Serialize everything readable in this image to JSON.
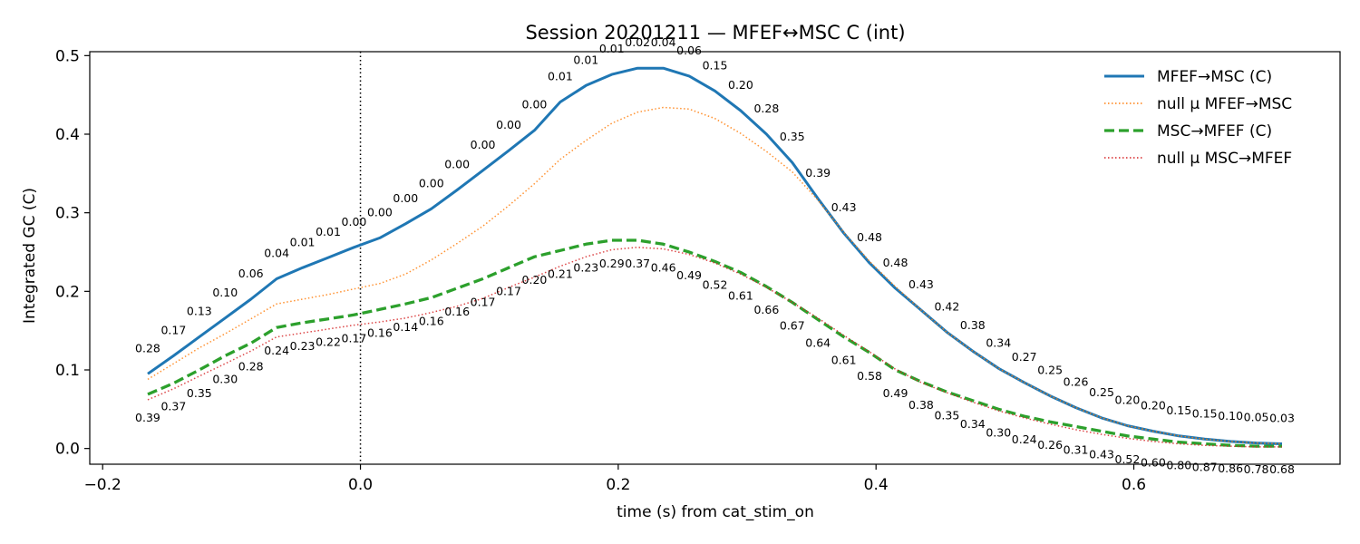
{
  "chart_data": {
    "type": "line",
    "title": "Session 20201211 — MFEF↔MSC C (int)",
    "xlabel": "time (s) from cat_stim_on",
    "ylabel": "Integrated GC (C)",
    "xlim": [
      -0.21,
      0.76
    ],
    "ylim": [
      -0.02,
      0.505
    ],
    "xticks": [
      -0.2,
      0.0,
      0.2,
      0.4,
      0.6
    ],
    "xtick_labels": [
      "−0.2",
      "0.0",
      "0.2",
      "0.4",
      "0.6"
    ],
    "yticks": [
      0.0,
      0.1,
      0.2,
      0.3,
      0.4,
      0.5
    ],
    "ytick_labels": [
      "0.0",
      "0.1",
      "0.2",
      "0.3",
      "0.4",
      "0.5"
    ],
    "vline_x": 0.0,
    "grid": false,
    "legend_position": "top-right",
    "x": [
      -0.165,
      -0.145,
      -0.125,
      -0.105,
      -0.085,
      -0.065,
      -0.045,
      -0.025,
      -0.005,
      0.015,
      0.035,
      0.055,
      0.075,
      0.095,
      0.115,
      0.135,
      0.155,
      0.175,
      0.195,
      0.215,
      0.235,
      0.255,
      0.275,
      0.295,
      0.315,
      0.335,
      0.355,
      0.375,
      0.395,
      0.415,
      0.435,
      0.455,
      0.475,
      0.495,
      0.515,
      0.535,
      0.555,
      0.575,
      0.595,
      0.615,
      0.635,
      0.655,
      0.675,
      0.695,
      0.715
    ],
    "series": [
      {
        "name": "MFEF→MSC (C)",
        "color": "#1f77b4",
        "style": "solid",
        "values": [
          0.095,
          0.118,
          0.142,
          0.166,
          0.19,
          0.216,
          0.23,
          0.243,
          0.256,
          0.268,
          0.286,
          0.305,
          0.329,
          0.354,
          0.379,
          0.405,
          0.441,
          0.462,
          0.476,
          0.484,
          0.484,
          0.474,
          0.455,
          0.43,
          0.4,
          0.364,
          0.318,
          0.274,
          0.236,
          0.204,
          0.176,
          0.148,
          0.124,
          0.102,
          0.084,
          0.067,
          0.052,
          0.039,
          0.029,
          0.022,
          0.016,
          0.012,
          0.009,
          0.007,
          0.006
        ],
        "pvalues": [
          "0.28",
          "0.17",
          "0.13",
          "0.10",
          "0.06",
          "0.04",
          "0.01",
          "0.01",
          "0.00",
          "0.00",
          "0.00",
          "0.00",
          "0.00",
          "0.00",
          "0.00",
          "0.00",
          "0.01",
          "0.01",
          "0.01",
          "0.02",
          "0.04",
          "0.06",
          "0.15",
          "0.20",
          "0.28",
          "0.35",
          "0.39",
          "0.43",
          "0.48",
          "0.48",
          "0.43",
          "0.42",
          "0.38",
          "0.34",
          "0.27",
          "0.25",
          "0.26",
          "0.25",
          "0.20",
          "0.20",
          "0.15",
          "0.15",
          "0.10",
          "0.05",
          "0.03"
        ]
      },
      {
        "name": "null μ MFEF→MSC",
        "color": "#ff7f0e",
        "style": "dotted",
        "values": [
          0.088,
          0.108,
          0.128,
          0.146,
          0.165,
          0.184,
          0.19,
          0.196,
          0.203,
          0.21,
          0.222,
          0.24,
          0.261,
          0.283,
          0.309,
          0.337,
          0.368,
          0.392,
          0.414,
          0.428,
          0.434,
          0.432,
          0.42,
          0.401,
          0.378,
          0.352,
          0.316,
          0.275,
          0.238,
          0.206,
          0.176,
          0.148,
          0.124,
          0.102,
          0.084,
          0.067,
          0.052,
          0.039,
          0.029,
          0.022,
          0.016,
          0.012,
          0.009,
          0.007,
          0.006
        ]
      },
      {
        "name": "MSC→MFEF (C)",
        "color": "#2ca02c",
        "style": "dashed",
        "values": [
          0.069,
          0.083,
          0.1,
          0.118,
          0.134,
          0.154,
          0.16,
          0.165,
          0.17,
          0.177,
          0.184,
          0.192,
          0.204,
          0.216,
          0.23,
          0.244,
          0.252,
          0.26,
          0.265,
          0.265,
          0.26,
          0.25,
          0.238,
          0.224,
          0.206,
          0.186,
          0.164,
          0.142,
          0.122,
          0.1,
          0.085,
          0.072,
          0.061,
          0.05,
          0.041,
          0.034,
          0.028,
          0.022,
          0.016,
          0.012,
          0.008,
          0.006,
          0.004,
          0.003,
          0.003
        ],
        "pvalues": [
          "0.39",
          "0.37",
          "0.35",
          "0.30",
          "0.28",
          "0.24",
          "0.23",
          "0.22",
          "0.17",
          "0.16",
          "0.14",
          "0.16",
          "0.16",
          "0.17",
          "0.17",
          "0.20",
          "0.21",
          "0.23",
          "0.29",
          "0.37",
          "0.46",
          "0.49",
          "0.52",
          "0.61",
          "0.66",
          "0.67",
          "0.64",
          "0.61",
          "0.58",
          "0.49",
          "0.38",
          "0.35",
          "0.34",
          "0.30",
          "0.24",
          "0.26",
          "0.31",
          "0.43",
          "0.52",
          "0.60",
          "0.80",
          "0.87",
          "0.86",
          "0.78",
          "0.68"
        ]
      },
      {
        "name": "null μ MSC→MFEF",
        "color": "#d62728",
        "style": "dotted",
        "values": [
          0.062,
          0.076,
          0.092,
          0.108,
          0.124,
          0.142,
          0.147,
          0.152,
          0.157,
          0.161,
          0.166,
          0.173,
          0.181,
          0.191,
          0.205,
          0.218,
          0.232,
          0.244,
          0.253,
          0.256,
          0.254,
          0.247,
          0.236,
          0.222,
          0.205,
          0.186,
          0.166,
          0.144,
          0.123,
          0.101,
          0.084,
          0.071,
          0.059,
          0.048,
          0.039,
          0.031,
          0.024,
          0.018,
          0.013,
          0.009,
          0.006,
          0.004,
          0.003,
          0.002,
          0.002
        ]
      }
    ]
  }
}
